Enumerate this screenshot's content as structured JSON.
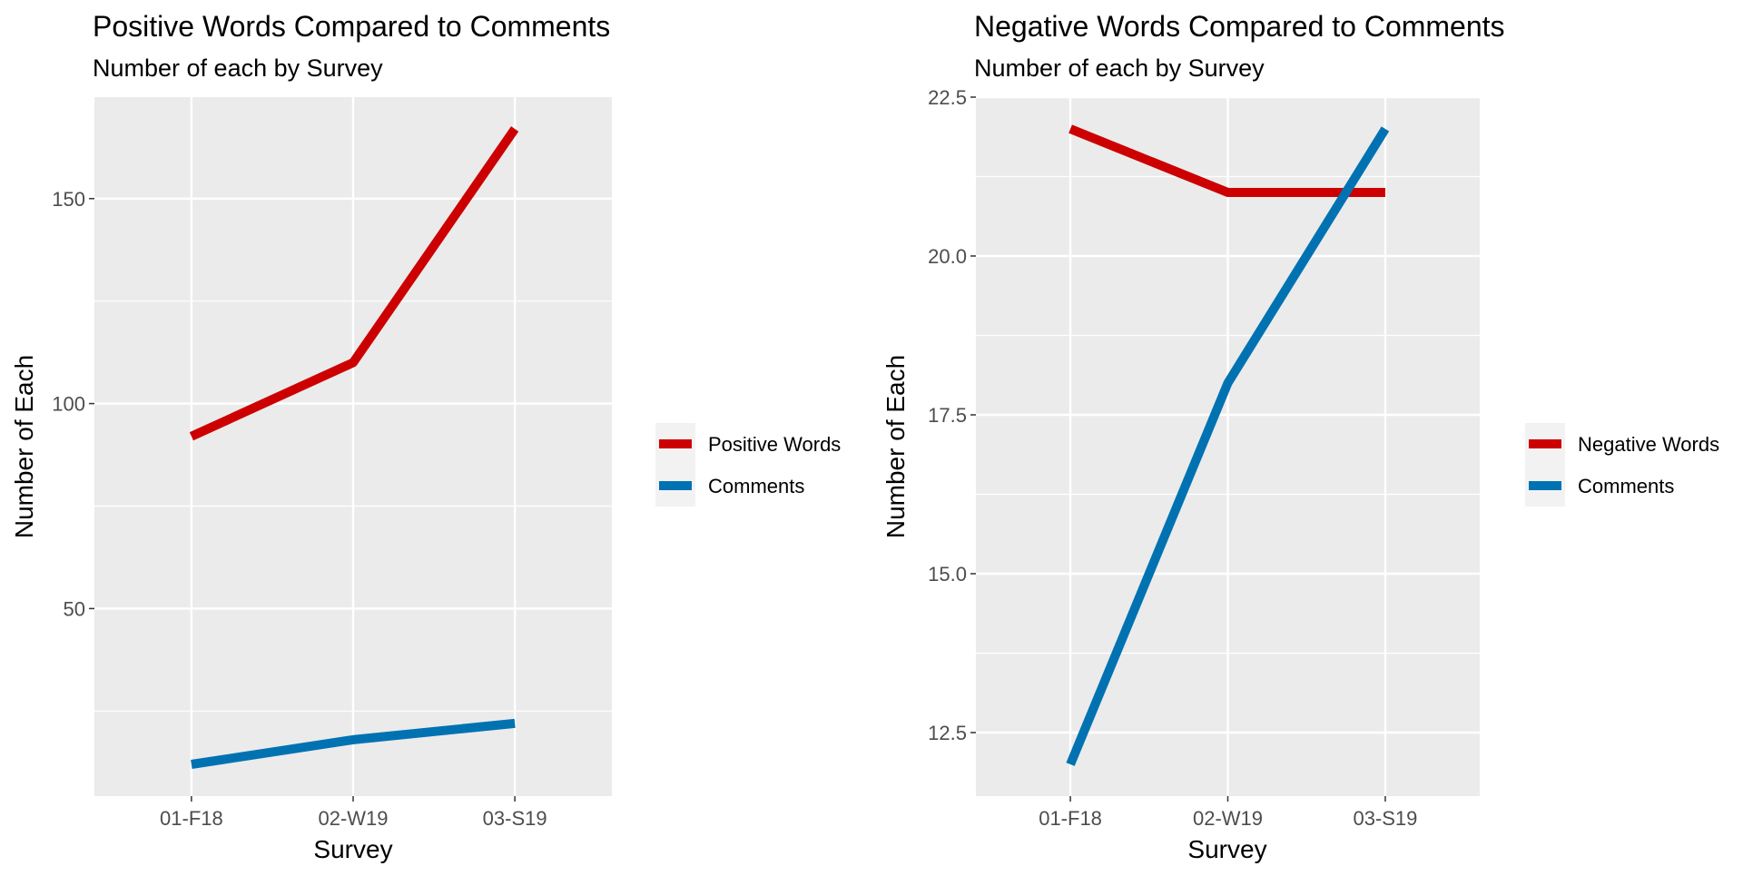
{
  "chart_data": [
    {
      "type": "line",
      "title": "Positive Words Compared to Comments",
      "subtitle": "Number of each by Survey",
      "xlabel": "Survey",
      "ylabel": "Number of Each",
      "categories": [
        "01-F18",
        "02-W19",
        "03-S19"
      ],
      "series": [
        {
          "name": "Positive Words",
          "color": "#cc0000",
          "values": [
            92,
            110,
            167
          ]
        },
        {
          "name": "Comments",
          "color": "#0072b2",
          "values": [
            12,
            18,
            22
          ]
        }
      ],
      "ylim": [
        4.25,
        174.75
      ],
      "yticks": [
        50,
        100,
        150
      ],
      "ytick_labels": [
        "50",
        "100",
        "150"
      ],
      "grid": true,
      "legend_position": "right"
    },
    {
      "type": "line",
      "title": "Negative Words Compared to Comments",
      "subtitle": "Number of each by Survey",
      "xlabel": "Survey",
      "ylabel": "Number of Each",
      "categories": [
        "01-F18",
        "02-W19",
        "03-S19"
      ],
      "series": [
        {
          "name": "Negative Words",
          "color": "#cc0000",
          "values": [
            22,
            21,
            21
          ]
        },
        {
          "name": "Comments",
          "color": "#0072b2",
          "values": [
            12,
            18,
            22
          ]
        }
      ],
      "ylim": [
        11.5,
        22.5
      ],
      "yticks": [
        12.5,
        15.0,
        17.5,
        20.0,
        22.5
      ],
      "ytick_labels": [
        "12.5",
        "15.0",
        "17.5",
        "20.0",
        "22.5"
      ],
      "grid": true,
      "legend_position": "right"
    }
  ]
}
